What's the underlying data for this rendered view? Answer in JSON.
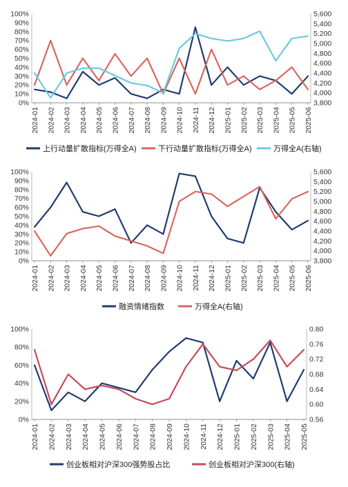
{
  "chart_data": [
    {
      "type": "line",
      "x": [
        "2024-01",
        "2024-02",
        "2024-03",
        "2024-04",
        "2024-05",
        "2024-06",
        "2024-07",
        "2024-08",
        "2024-09",
        "2024-10",
        "2024-11",
        "2024-12",
        "2025-01",
        "2025-02",
        "2025-03",
        "2025-04",
        "2025-05",
        "2025-06"
      ],
      "y_left_ticks": [
        "0%",
        "10%",
        "20%",
        "30%",
        "40%",
        "50%",
        "60%",
        "70%",
        "80%",
        "90%",
        "100%"
      ],
      "y_right_ticks": [
        "3,800",
        "4,000",
        "4,200",
        "4,400",
        "4,600",
        "4,800",
        "5,000",
        "5,200",
        "5,400",
        "5,600"
      ],
      "ylim_left": [
        0,
        100
      ],
      "ylim_right": [
        3800,
        5600
      ],
      "legend_position": "bottom",
      "series": [
        {
          "name": "上行动量扩散指标(万得全A)",
          "axis": "left",
          "color": "#1F3A6E",
          "values": [
            15,
            12,
            5,
            35,
            20,
            28,
            10,
            5,
            15,
            10,
            85,
            20,
            40,
            20,
            30,
            25,
            10,
            30
          ]
        },
        {
          "name": "下行动量扩散指标(万得全A)",
          "axis": "left",
          "color": "#D9665E",
          "values": [
            20,
            70,
            20,
            50,
            25,
            55,
            30,
            50,
            10,
            50,
            10,
            60,
            20,
            30,
            15,
            25,
            40,
            15
          ]
        },
        {
          "name": "万得全A(右轴)",
          "axis": "right",
          "color": "#6CC8E0",
          "values": [
            4400,
            3900,
            4400,
            4500,
            4500,
            4350,
            4200,
            4150,
            4000,
            4900,
            5200,
            5100,
            5050,
            5100,
            5250,
            4650,
            5100,
            5150
          ]
        }
      ]
    },
    {
      "type": "line",
      "x": [
        "2024-01",
        "2024-02",
        "2024-03",
        "2024-04",
        "2024-05",
        "2024-06",
        "2024-07",
        "2024-08",
        "2024-09",
        "2024-10",
        "2024-11",
        "2024-12",
        "2025-01",
        "2025-02",
        "2025-03",
        "2025-04",
        "2025-05",
        "2025-06"
      ],
      "y_left_ticks": [
        "0%",
        "10%",
        "20%",
        "30%",
        "40%",
        "50%",
        "60%",
        "70%",
        "80%",
        "90%",
        "100%"
      ],
      "y_right_ticks": [
        "3,800",
        "4,000",
        "4,200",
        "4,400",
        "4,600",
        "4,800",
        "5,000",
        "5,200",
        "5,400",
        "5,600"
      ],
      "ylim_left": [
        0,
        100
      ],
      "ylim_right": [
        3800,
        5600
      ],
      "legend_position": "bottom",
      "series": [
        {
          "name": "融资情绪指数",
          "axis": "left",
          "color": "#1F3A6E",
          "values": [
            38,
            60,
            88,
            55,
            50,
            58,
            20,
            40,
            30,
            98,
            95,
            50,
            25,
            20,
            82,
            55,
            35,
            45
          ]
        },
        {
          "name": "万得全A(右轴)",
          "axis": "right",
          "color": "#D9665E",
          "values": [
            4400,
            3900,
            4350,
            4450,
            4500,
            4300,
            4200,
            4100,
            3950,
            5000,
            5200,
            5150,
            4900,
            5100,
            5300,
            4650,
            5050,
            5200
          ]
        }
      ]
    },
    {
      "type": "line",
      "x": [
        "2024-01",
        "2024-02",
        "2024-03",
        "2024-04",
        "2024-05",
        "2024-06",
        "2024-07",
        "2024-08",
        "2024-09",
        "2024-10",
        "2024-11",
        "2024-12",
        "2025-01",
        "2025-02",
        "2025-03",
        "2025-04",
        "2025-05"
      ],
      "y_left_ticks": [
        "0%",
        "20%",
        "40%",
        "60%",
        "80%",
        "100%"
      ],
      "y_right_ticks": [
        "0.56",
        "0.60",
        "0.64",
        "0.68",
        "0.72",
        "0.76",
        "0.80"
      ],
      "ylim_left": [
        0,
        100
      ],
      "ylim_right": [
        0.56,
        0.8
      ],
      "legend_position": "bottom",
      "series": [
        {
          "name": "创业板相对沪深300强势股占比",
          "axis": "left",
          "color": "#1F3A6E",
          "values": [
            60,
            10,
            30,
            20,
            40,
            35,
            30,
            55,
            75,
            90,
            85,
            20,
            65,
            45,
            85,
            20,
            55
          ]
        },
        {
          "name": "创业板相对沪深300(右轴)",
          "axis": "right",
          "color": "#C9485B",
          "values": [
            0.745,
            0.6,
            0.68,
            0.64,
            0.65,
            0.64,
            0.615,
            0.6,
            0.615,
            0.7,
            0.76,
            0.7,
            0.69,
            0.72,
            0.77,
            0.7,
            0.745
          ]
        }
      ]
    }
  ]
}
